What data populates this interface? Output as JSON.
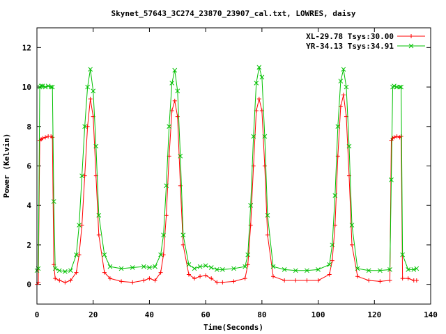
{
  "chart_data": {
    "type": "line",
    "title": "Skynet_57643_3C274_23870_23907_cal.txt, LOWRES, daisy",
    "xlabel": "Time(Seconds)",
    "ylabel": "Power (Kelvin)",
    "xlim": [
      0,
      140
    ],
    "ylim": [
      -1,
      13
    ],
    "xticks": [
      0,
      20,
      40,
      60,
      80,
      100,
      120,
      140
    ],
    "yticks": [
      0,
      2,
      4,
      6,
      8,
      10,
      12
    ],
    "grid": false,
    "legend_position": "top-right",
    "colors": {
      "XL": "#ff0000",
      "YR": "#00c000"
    },
    "series": [
      {
        "name": "XL-29.78 Tsys:30.00",
        "key": "XL",
        "marker": "plus",
        "t": [
          0.0,
          0.5,
          1.0,
          1.5,
          2.0,
          3.0,
          4.0,
          5.0,
          5.5,
          6.0,
          6.5,
          8.0,
          10.0,
          12.0,
          14.0,
          15.0,
          16.0,
          17.0,
          18.0,
          19.0,
          20.0,
          21.0,
          22.0,
          24.0,
          26.0,
          30.0,
          34.0,
          38.0,
          40.0,
          42.0,
          44.0,
          45.0,
          46.0,
          47.0,
          48.0,
          49.0,
          50.0,
          51.0,
          52.0,
          54.0,
          56.0,
          58.0,
          60.0,
          62.0,
          64.0,
          66.0,
          70.0,
          74.0,
          75.0,
          76.0,
          77.0,
          78.0,
          79.0,
          80.0,
          81.0,
          82.0,
          84.0,
          88.0,
          92.0,
          96.0,
          100.0,
          104.0,
          105.0,
          106.0,
          107.0,
          108.0,
          109.0,
          110.0,
          111.0,
          112.0,
          114.0,
          118.0,
          122.0,
          125.5,
          126.0,
          126.5,
          127.0,
          128.0,
          129.0,
          129.5,
          130.0,
          132.0,
          134.0,
          135.0
        ],
        "y": [
          0.0,
          0.1,
          7.3,
          7.35,
          7.4,
          7.45,
          7.5,
          7.5,
          7.45,
          1.0,
          0.3,
          0.2,
          0.1,
          0.2,
          0.6,
          1.5,
          3.0,
          5.5,
          8.0,
          9.4,
          8.5,
          5.5,
          2.5,
          0.6,
          0.3,
          0.15,
          0.1,
          0.2,
          0.3,
          0.2,
          0.6,
          1.5,
          3.5,
          6.5,
          8.8,
          9.3,
          8.5,
          5.0,
          2.0,
          0.5,
          0.3,
          0.4,
          0.45,
          0.3,
          0.1,
          0.1,
          0.15,
          0.3,
          1.0,
          3.0,
          6.0,
          8.8,
          9.4,
          8.8,
          6.0,
          2.5,
          0.4,
          0.2,
          0.2,
          0.2,
          0.2,
          0.5,
          1.2,
          3.0,
          6.5,
          9.0,
          9.6,
          8.5,
          5.5,
          2.0,
          0.4,
          0.2,
          0.15,
          0.2,
          7.3,
          7.4,
          7.45,
          7.5,
          7.45,
          7.5,
          0.3,
          0.3,
          0.2,
          0.2
        ]
      },
      {
        "name": "YR-34.13 Tsys:34.91",
        "key": "YR",
        "marker": "cross",
        "t": [
          0.0,
          0.5,
          1.0,
          1.5,
          2.0,
          3.0,
          4.0,
          5.0,
          5.5,
          6.0,
          6.5,
          8.0,
          10.0,
          12.0,
          14.0,
          15.0,
          16.0,
          17.0,
          18.0,
          19.0,
          20.0,
          21.0,
          22.0,
          24.0,
          26.0,
          30.0,
          34.0,
          38.0,
          40.0,
          42.0,
          44.0,
          45.0,
          46.0,
          47.0,
          48.0,
          49.0,
          50.0,
          51.0,
          52.0,
          54.0,
          56.0,
          58.0,
          60.0,
          62.0,
          64.0,
          66.0,
          70.0,
          74.0,
          75.0,
          76.0,
          77.0,
          78.0,
          79.0,
          80.0,
          81.0,
          82.0,
          84.0,
          88.0,
          92.0,
          96.0,
          100.0,
          104.0,
          105.0,
          106.0,
          107.0,
          108.0,
          109.0,
          110.0,
          111.0,
          112.0,
          114.0,
          118.0,
          122.0,
          125.5,
          126.0,
          126.5,
          127.0,
          128.0,
          129.0,
          129.5,
          130.0,
          132.0,
          134.0,
          135.0
        ],
        "y": [
          0.7,
          0.8,
          10.0,
          10.05,
          10.05,
          10.0,
          10.05,
          10.0,
          10.0,
          4.2,
          0.8,
          0.7,
          0.65,
          0.7,
          1.5,
          3.0,
          5.5,
          8.0,
          10.0,
          10.9,
          9.8,
          7.0,
          3.5,
          1.5,
          0.9,
          0.8,
          0.85,
          0.9,
          0.85,
          0.9,
          1.5,
          2.5,
          5.0,
          8.0,
          10.2,
          10.85,
          9.8,
          6.5,
          2.5,
          1.0,
          0.8,
          0.9,
          0.95,
          0.85,
          0.75,
          0.75,
          0.8,
          0.9,
          1.5,
          4.0,
          7.5,
          10.2,
          11.0,
          10.5,
          7.5,
          3.5,
          0.9,
          0.75,
          0.7,
          0.7,
          0.75,
          1.0,
          2.0,
          4.5,
          8.0,
          10.3,
          10.9,
          10.0,
          7.0,
          3.0,
          0.8,
          0.7,
          0.7,
          0.75,
          5.3,
          10.0,
          10.05,
          10.0,
          10.0,
          10.0,
          1.5,
          0.75,
          0.75,
          0.8
        ]
      }
    ]
  }
}
